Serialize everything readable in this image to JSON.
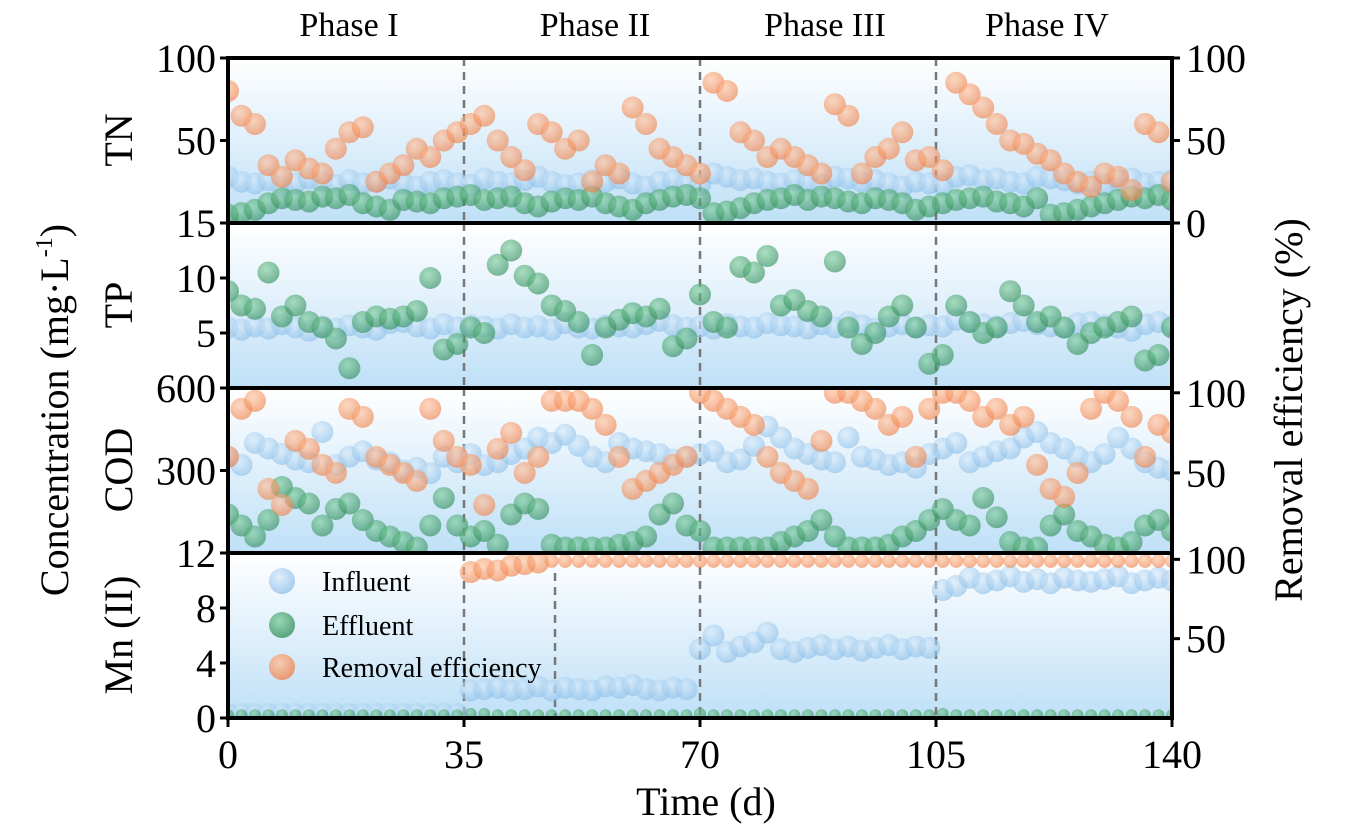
{
  "chart_data": {
    "type": "scatter",
    "xlabel": "Time (d)",
    "ylabel_left": "Concentration (mg·L",
    "ylabel_left_sup": "-1",
    "ylabel_left_end": ")",
    "ylabel_right": "Removal efficiency (%)",
    "xlim": [
      0,
      140
    ],
    "x_step": 2,
    "xticks": [
      "0",
      "35",
      "70",
      "105",
      "140"
    ],
    "xtick_values": [
      0,
      35,
      70,
      105,
      140
    ],
    "phase_boundaries": [
      35,
      70,
      105
    ],
    "extra_boundary_mn": 48.5,
    "phases": [
      "Phase I",
      "Phase II",
      "Phase III",
      "Phase IV"
    ],
    "phase_centers": [
      17.5,
      52.5,
      87.5,
      122.5
    ],
    "legend": {
      "position": "lower-left of Mn panel",
      "entries": [
        "Influent",
        "Effluent",
        "Removal efficiency"
      ]
    },
    "colors": {
      "influent": "#8dbfe8",
      "effluent": "#2e8b57",
      "removal": "#f07f45"
    },
    "panels": [
      {
        "name": "TN",
        "ylim": [
          0,
          100
        ],
        "yticks": [
          {
            "v": 100,
            "t": "100"
          },
          {
            "v": 50,
            "t": "50"
          }
        ],
        "ylim_right": [
          0,
          100
        ],
        "yticks_right": [
          {
            "v": 100,
            "t": "100"
          },
          {
            "v": 50,
            "t": "50"
          },
          {
            "v": 0,
            "t": "0"
          }
        ],
        "influent": [
          28,
          25,
          24,
          26,
          22,
          24,
          27,
          25,
          23,
          26,
          24,
          25,
          27,
          24,
          22,
          25,
          26,
          24,
          23,
          27,
          25,
          24,
          26,
          28,
          25,
          23,
          24,
          26,
          25,
          27,
          24,
          22,
          25,
          26,
          24,
          23,
          30,
          28,
          26,
          27,
          25,
          24,
          26,
          25,
          23,
          28,
          27,
          25,
          26,
          24,
          22,
          25,
          24,
          23,
          28,
          29,
          26,
          27,
          25,
          24,
          28,
          27,
          26,
          24,
          25,
          23,
          26,
          27,
          24,
          25,
          26
        ],
        "effluent": [
          5,
          6,
          8,
          12,
          15,
          14,
          13,
          16,
          15,
          17,
          12,
          10,
          8,
          14,
          13,
          12,
          15,
          16,
          17,
          14,
          15,
          16,
          12,
          10,
          13,
          15,
          14,
          16,
          12,
          10,
          8,
          12,
          14,
          16,
          17,
          15,
          6,
          7,
          9,
          12,
          14,
          15,
          17,
          14,
          16,
          15,
          13,
          12,
          15,
          14,
          12,
          8,
          10,
          12,
          14,
          15,
          16,
          13,
          12,
          10,
          15,
          5,
          6,
          8,
          10,
          12,
          14,
          16,
          15,
          17,
          14
        ],
        "removal": [
          80,
          65,
          60,
          35,
          28,
          38,
          33,
          30,
          45,
          55,
          58,
          25,
          30,
          35,
          45,
          40,
          50,
          55,
          60,
          65,
          50,
          40,
          32,
          60,
          55,
          45,
          50,
          25,
          35,
          30,
          70,
          60,
          45,
          40,
          35,
          30,
          85,
          80,
          55,
          50,
          40,
          45,
          40,
          35,
          30,
          72,
          65,
          30,
          40,
          45,
          55,
          38,
          40,
          32,
          85,
          78,
          70,
          60,
          50,
          48,
          42,
          38,
          30,
          25,
          22,
          30,
          28,
          20,
          60,
          55,
          25
        ]
      },
      {
        "name": "TP",
        "ylim": [
          0,
          15
        ],
        "yticks": [
          {
            "v": 15,
            "t": "15"
          },
          {
            "v": 10,
            "t": "10"
          },
          {
            "v": 5,
            "t": "5"
          }
        ],
        "influent": [
          5.5,
          5.3,
          5.6,
          5.4,
          5.8,
          5.5,
          5.2,
          5.6,
          5.4,
          5.7,
          5.5,
          5.3,
          5.9,
          6.0,
          5.6,
          5.4,
          5.8,
          5.5,
          5.7,
          5.6,
          5.4,
          5.8,
          5.5,
          5.6,
          5.3,
          5.9,
          5.5,
          5.4,
          5.7,
          5.6,
          5.5,
          5.8,
          6.1,
          5.7,
          5.5,
          5.6,
          5.4,
          5.8,
          5.6,
          5.5,
          5.9,
          5.7,
          5.6,
          5.4,
          5.8,
          5.5,
          6.0,
          5.7,
          5.4,
          5.6,
          5.8,
          5.5,
          5.7,
          5.6,
          6.2,
          6.0,
          5.8,
          5.6,
          5.9,
          6.1,
          5.8,
          5.6,
          5.5,
          5.9,
          6.0,
          5.7,
          5.5,
          5.2,
          5.8,
          6.0,
          5.7
        ],
        "effluent": [
          8.8,
          7.5,
          7.2,
          10.5,
          6.5,
          7.5,
          6.0,
          5.5,
          4.5,
          1.8,
          6.0,
          6.5,
          6.3,
          6.5,
          7.0,
          10.0,
          3.5,
          4.0,
          5.5,
          5.0,
          11.2,
          12.5,
          10.2,
          9.5,
          7.5,
          7.0,
          6.0,
          3.0,
          5.5,
          6.2,
          6.8,
          6.5,
          7.2,
          3.8,
          4.5,
          8.5,
          6.0,
          5.5,
          11.0,
          10.5,
          12.0,
          7.5,
          8.0,
          7.0,
          6.5,
          11.5,
          5.5,
          4.0,
          5.0,
          6.5,
          7.5,
          5.5,
          2.2,
          3.0,
          7.5,
          6.0,
          5.0,
          5.5,
          8.8,
          7.5,
          6.0,
          6.5,
          5.5,
          4.0,
          5.0,
          5.5,
          6.0,
          6.5,
          2.5,
          3.0,
          5.5
        ]
      },
      {
        "name": "COD",
        "ylim": [
          0,
          600
        ],
        "yticks": [
          {
            "v": 600,
            "t": "600"
          },
          {
            "v": 300,
            "t": "300"
          }
        ],
        "ylim_right": [
          0,
          103
        ],
        "yticks_right": [
          {
            "v": 100,
            "t": "100"
          },
          {
            "v": 50,
            "t": "50"
          }
        ],
        "influent": [
          350,
          320,
          400,
          380,
          360,
          340,
          330,
          440,
          320,
          350,
          370,
          340,
          330,
          300,
          310,
          290,
          350,
          330,
          360,
          320,
          330,
          360,
          380,
          420,
          400,
          430,
          390,
          350,
          330,
          400,
          380,
          370,
          360,
          340,
          350,
          360,
          370,
          330,
          340,
          390,
          460,
          420,
          380,
          360,
          340,
          330,
          420,
          350,
          340,
          320,
          330,
          310,
          360,
          380,
          400,
          330,
          350,
          370,
          380,
          420,
          440,
          400,
          380,
          350,
          330,
          360,
          420,
          380,
          330,
          310,
          300
        ],
        "effluent": [
          140,
          100,
          60,
          120,
          240,
          200,
          180,
          100,
          160,
          180,
          120,
          80,
          60,
          40,
          20,
          100,
          200,
          100,
          60,
          80,
          30,
          140,
          180,
          160,
          30,
          20,
          20,
          20,
          20,
          30,
          40,
          60,
          140,
          180,
          100,
          80,
          20,
          20,
          20,
          20,
          20,
          40,
          60,
          80,
          120,
          60,
          20,
          20,
          20,
          30,
          60,
          80,
          120,
          160,
          120,
          100,
          200,
          130,
          40,
          20,
          20,
          100,
          140,
          80,
          60,
          30,
          20,
          40,
          100,
          120,
          80
        ],
        "removal": [
          60,
          90,
          95,
          40,
          30,
          70,
          65,
          55,
          50,
          90,
          85,
          60,
          55,
          50,
          45,
          90,
          70,
          60,
          55,
          30,
          65,
          75,
          50,
          60,
          95,
          95,
          95,
          90,
          80,
          60,
          40,
          45,
          50,
          55,
          60,
          100,
          95,
          90,
          85,
          80,
          60,
          50,
          45,
          40,
          70,
          100,
          100,
          95,
          90,
          80,
          85,
          60,
          90,
          100,
          100,
          95,
          85,
          90,
          80,
          85,
          55,
          40,
          35,
          50,
          90,
          100,
          95,
          85,
          60,
          80,
          75
        ]
      },
      {
        "name": "Mn (II)",
        "ylim": [
          0,
          12
        ],
        "yticks": [
          {
            "v": 12,
            "t": "12"
          },
          {
            "v": 8,
            "t": "8"
          },
          {
            "v": 4,
            "t": "4"
          },
          {
            "v": 0,
            "t": "0"
          }
        ],
        "ylim_right": [
          0,
          104
        ],
        "yticks_right": [
          {
            "v": 100,
            "t": "100"
          },
          {
            "v": 50,
            "t": "50"
          }
        ],
        "influent": [
          0.3,
          0.3,
          0.3,
          0.3,
          0.3,
          0.3,
          0.3,
          0.3,
          0.3,
          0.3,
          0.3,
          0.3,
          0.3,
          0.3,
          0.3,
          0.3,
          0.3,
          0.3,
          2.0,
          2.1,
          2.2,
          2.0,
          2.1,
          2.3,
          2.0,
          2.2,
          2.1,
          2.0,
          2.3,
          2.2,
          2.4,
          2.1,
          2.0,
          2.2,
          2.1,
          5.0,
          6.0,
          4.8,
          5.2,
          5.5,
          6.2,
          5.0,
          4.8,
          5.1,
          5.3,
          5.0,
          5.2,
          4.9,
          5.1,
          5.3,
          5.0,
          5.2,
          5.1,
          9.3,
          9.6,
          10.2,
          9.8,
          10.0,
          10.3,
          9.9,
          10.1,
          9.8,
          10.2,
          10.0,
          9.9,
          10.1,
          10.3,
          9.8,
          10.0,
          10.2,
          10.0
        ],
        "effluent": [
          0.2,
          0.2,
          0.2,
          0.2,
          0.2,
          0.2,
          0.2,
          0.2,
          0.2,
          0.2,
          0.2,
          0.2,
          0.2,
          0.2,
          0.2,
          0.2,
          0.2,
          0.2,
          0.3,
          0.3,
          0.2,
          0.2,
          0.2,
          0.2,
          0.2,
          0.2,
          0.2,
          0.2,
          0.2,
          0.2,
          0.2,
          0.2,
          0.2,
          0.2,
          0.2,
          0.3,
          0.2,
          0.2,
          0.2,
          0.2,
          0.2,
          0.2,
          0.2,
          0.2,
          0.2,
          0.2,
          0.2,
          0.2,
          0.2,
          0.2,
          0.2,
          0.2,
          0.2,
          0.3,
          0.2,
          0.2,
          0.2,
          0.2,
          0.2,
          0.2,
          0.2,
          0.2,
          0.2,
          0.2,
          0.2,
          0.2,
          0.2,
          0.2,
          0.2,
          0.2,
          0.2
        ],
        "removal": [
          null,
          null,
          null,
          null,
          null,
          null,
          null,
          null,
          null,
          null,
          null,
          null,
          null,
          null,
          null,
          null,
          null,
          null,
          92,
          94,
          93,
          96,
          97,
          98,
          99,
          99,
          99,
          99,
          99,
          99,
          99,
          99,
          99,
          99,
          99,
          99,
          99,
          99,
          99,
          99,
          99,
          99,
          99,
          99,
          99,
          99,
          99,
          99,
          99,
          99,
          99,
          99,
          99,
          99,
          99,
          99,
          99,
          99,
          99,
          99,
          99,
          99,
          99,
          99,
          99,
          99,
          99,
          99,
          99,
          99,
          99
        ]
      }
    ]
  }
}
